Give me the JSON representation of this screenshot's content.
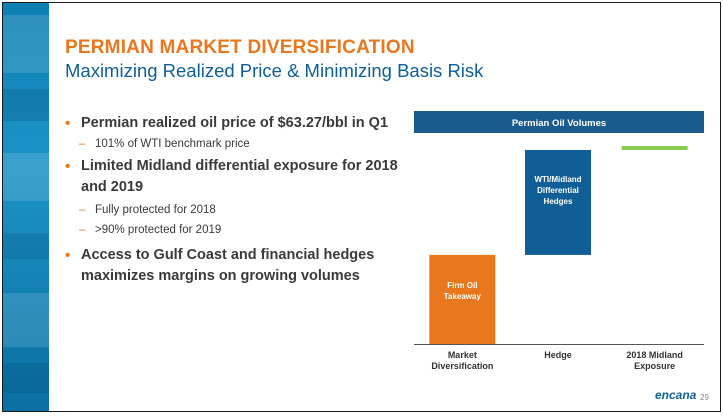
{
  "header": {
    "title": "PERMIAN MARKET DIVERSIFICATION",
    "subtitle": "Maximizing Realized Price & Minimizing Basis Risk"
  },
  "bullets": [
    {
      "text": "Permian realized oil price of $63.27/bbl in Q1",
      "sub": [
        "101% of WTI benchmark price"
      ]
    },
    {
      "text": "Limited Midland differential exposure for 2018 and 2019",
      "sub": [
        "Fully protected for 2018",
        ">90% protected for 2019"
      ]
    },
    {
      "text": "Access to Gulf Coast and financial hedges maximizes margins on growing volumes",
      "sub": []
    }
  ],
  "chart_data": {
    "type": "bar",
    "title": "Permian Oil Volumes",
    "categories": [
      "Market Diversification",
      "Hedge",
      "2018 Midland Exposure"
    ],
    "category_lines": [
      [
        "Market",
        "Diversification"
      ],
      [
        "Hedge"
      ],
      [
        "2018 Midland",
        "Exposure"
      ]
    ],
    "bars": [
      {
        "category": "Market Diversification",
        "label_lines": [
          "Firm Oil",
          "Takeaway"
        ],
        "start": 0,
        "end": 0.45,
        "color": "#e8771e"
      },
      {
        "category": "Hedge",
        "label_lines": [
          "WTI/Midland",
          "Differential",
          "Hedges"
        ],
        "start": 0.45,
        "end": 0.98,
        "color": "#0f5e96"
      },
      {
        "category": "2018 Midland Exposure",
        "label_lines": [],
        "start": 0.98,
        "end": 1.0,
        "color": "#8ccb4e"
      }
    ],
    "ylim": [
      0,
      1
    ],
    "title_bar_color": "#1a5b8e"
  },
  "footer": {
    "logo": "encana",
    "page": "29"
  }
}
